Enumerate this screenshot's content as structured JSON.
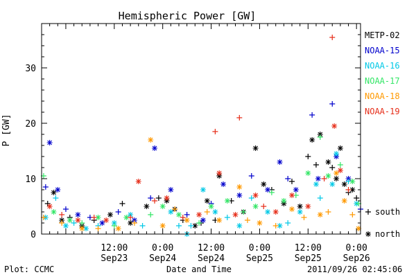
{
  "chart_data": {
    "type": "scatter",
    "title": "Hemispheric Power [GW]",
    "ylabel": "P [GW]",
    "xlabel": "Date and Time",
    "ylim": [
      0,
      38
    ],
    "xlim": [
      "2011-09-22T18:00",
      "2011-09-26T01:00"
    ],
    "yticks": [
      0,
      10,
      20,
      30
    ],
    "xticks": [
      {
        "at": "2011-09-23T12:00",
        "time": "12:00",
        "date": "Sep23"
      },
      {
        "at": "2011-09-24T00:00",
        "time": "0:00",
        "date": "Sep24"
      },
      {
        "at": "2011-09-24T12:00",
        "time": "12:00",
        "date": "Sep24"
      },
      {
        "at": "2011-09-25T00:00",
        "time": "0:00",
        "date": "Sep25"
      },
      {
        "at": "2011-09-25T12:00",
        "time": "12:00",
        "date": "Sep25"
      },
      {
        "at": "2011-09-26T00:00",
        "time": "0:00",
        "date": "Sep26"
      }
    ],
    "grid": false,
    "legend_position": "right",
    "marker_legend": [
      {
        "symbol": "+",
        "label": "south"
      },
      {
        "symbol": "*",
        "label": "north"
      }
    ],
    "series": [
      {
        "name": "METP-02",
        "color": "#000000",
        "points": [
          [
            "2011-09-22T19:30",
            5.5,
            "+"
          ],
          [
            "2011-09-22T21:00",
            7.5,
            "*"
          ],
          [
            "2011-09-22T23:00",
            2.5,
            "*"
          ],
          [
            "2011-09-23T01:00",
            3.0,
            "+"
          ],
          [
            "2011-09-23T04:00",
            1.5,
            "*"
          ],
          [
            "2011-09-23T07:00",
            2.5,
            "+"
          ],
          [
            "2011-09-23T11:00",
            3.5,
            "*"
          ],
          [
            "2011-09-23T14:00",
            5.5,
            "+"
          ],
          [
            "2011-09-23T16:00",
            2.0,
            "*"
          ],
          [
            "2011-09-23T20:00",
            5.0,
            "*"
          ],
          [
            "2011-09-23T23:00",
            6.5,
            "+"
          ],
          [
            "2011-09-24T01:00",
            6.0,
            "*"
          ],
          [
            "2011-09-24T03:00",
            4.5,
            "*"
          ],
          [
            "2011-09-24T05:00",
            2.5,
            "+"
          ],
          [
            "2011-09-24T08:00",
            1.5,
            "*"
          ],
          [
            "2011-09-24T09:30",
            2.0,
            "+"
          ],
          [
            "2011-09-24T11:00",
            6.0,
            "*"
          ],
          [
            "2011-09-24T13:00",
            2.5,
            "+"
          ],
          [
            "2011-09-24T14:00",
            10.5,
            "*"
          ],
          [
            "2011-09-24T17:00",
            6.0,
            "+"
          ],
          [
            "2011-09-24T20:00",
            4.0,
            "*"
          ],
          [
            "2011-09-24T23:00",
            15.5,
            "*"
          ],
          [
            "2011-09-25T01:00",
            9.0,
            "*"
          ],
          [
            "2011-09-25T03:00",
            8.0,
            "+"
          ],
          [
            "2011-09-25T06:00",
            5.5,
            "*"
          ],
          [
            "2011-09-25T08:00",
            9.5,
            "+"
          ],
          [
            "2011-09-25T10:00",
            5.0,
            "*"
          ],
          [
            "2011-09-25T12:00",
            14.0,
            "+"
          ],
          [
            "2011-09-25T13:00",
            17.0,
            "*"
          ],
          [
            "2011-09-25T14:00",
            12.5,
            "+"
          ],
          [
            "2011-09-25T15:00",
            18.0,
            "*"
          ],
          [
            "2011-09-25T17:00",
            13.0,
            "*"
          ],
          [
            "2011-09-25T18:00",
            12.0,
            "+"
          ],
          [
            "2011-09-25T19:00",
            10.0,
            "*"
          ],
          [
            "2011-09-25T20:00",
            15.5,
            "*"
          ],
          [
            "2011-09-25T21:00",
            9.0,
            "*"
          ],
          [
            "2011-09-25T22:00",
            7.5,
            "+"
          ],
          [
            "2011-09-25T23:00",
            8.0,
            "*"
          ],
          [
            "2011-09-26T00:00",
            6.5,
            "+"
          ]
        ]
      },
      {
        "name": "NOAA-15",
        "color": "#0000cc",
        "points": [
          [
            "2011-09-22T19:00",
            8.5,
            "+"
          ],
          [
            "2011-09-22T20:00",
            16.5,
            "*"
          ],
          [
            "2011-09-22T22:00",
            8.0,
            "*"
          ],
          [
            "2011-09-23T00:00",
            4.5,
            "+"
          ],
          [
            "2011-09-23T03:00",
            3.5,
            "*"
          ],
          [
            "2011-09-23T06:00",
            3.0,
            "+"
          ],
          [
            "2011-09-23T09:00",
            2.0,
            "*"
          ],
          [
            "2011-09-23T13:00",
            4.0,
            "+"
          ],
          [
            "2011-09-23T17:00",
            2.5,
            "*"
          ],
          [
            "2011-09-23T21:00",
            6.5,
            "+"
          ],
          [
            "2011-09-23T22:00",
            15.5,
            "*"
          ],
          [
            "2011-09-24T02:00",
            8.0,
            "*"
          ],
          [
            "2011-09-24T06:00",
            3.5,
            "+"
          ],
          [
            "2011-09-24T10:00",
            2.5,
            "*"
          ],
          [
            "2011-09-24T12:00",
            5.5,
            "+"
          ],
          [
            "2011-09-24T15:00",
            9.0,
            "*"
          ],
          [
            "2011-09-24T19:00",
            7.0,
            "*"
          ],
          [
            "2011-09-24T22:00",
            10.5,
            "+"
          ],
          [
            "2011-09-25T02:00",
            8.0,
            "*"
          ],
          [
            "2011-09-25T05:00",
            13.0,
            "*"
          ],
          [
            "2011-09-25T07:00",
            10.0,
            "+"
          ],
          [
            "2011-09-25T09:00",
            8.0,
            "*"
          ],
          [
            "2011-09-25T13:00",
            21.5,
            "+"
          ],
          [
            "2011-09-25T14:30",
            10.0,
            "*"
          ],
          [
            "2011-09-25T18:00",
            23.5,
            "+"
          ],
          [
            "2011-09-25T19:00",
            14.0,
            "*"
          ],
          [
            "2011-09-25T22:00",
            10.0,
            "*"
          ],
          [
            "2011-09-26T01:00",
            4.5,
            "+"
          ]
        ]
      },
      {
        "name": "NOAA-16",
        "color": "#00c8e6",
        "points": [
          [
            "2011-09-22T19:00",
            3.0,
            "*"
          ],
          [
            "2011-09-22T21:30",
            6.5,
            "+"
          ],
          [
            "2011-09-23T00:00",
            1.5,
            "*"
          ],
          [
            "2011-09-23T02:00",
            2.0,
            "+"
          ],
          [
            "2011-09-23T05:00",
            1.0,
            "*"
          ],
          [
            "2011-09-23T08:00",
            1.5,
            "+"
          ],
          [
            "2011-09-23T12:00",
            2.0,
            "*"
          ],
          [
            "2011-09-23T16:00",
            3.5,
            "*"
          ],
          [
            "2011-09-23T19:00",
            1.5,
            "+"
          ],
          [
            "2011-09-24T02:00",
            4.0,
            "*"
          ],
          [
            "2011-09-24T04:00",
            1.5,
            "+"
          ],
          [
            "2011-09-24T06:00",
            0.0,
            "*"
          ],
          [
            "2011-09-24T07:00",
            1.5,
            "+"
          ],
          [
            "2011-09-24T10:00",
            8.0,
            "*"
          ],
          [
            "2011-09-24T13:00",
            4.0,
            "*"
          ],
          [
            "2011-09-24T16:00",
            3.0,
            "+"
          ],
          [
            "2011-09-24T19:00",
            1.5,
            "*"
          ],
          [
            "2011-09-24T22:00",
            6.5,
            "+"
          ],
          [
            "2011-09-25T02:00",
            4.0,
            "*"
          ],
          [
            "2011-09-25T05:00",
            1.5,
            "*"
          ],
          [
            "2011-09-25T07:00",
            2.0,
            "+"
          ],
          [
            "2011-09-25T10:00",
            4.0,
            "*"
          ],
          [
            "2011-09-25T14:00",
            9.0,
            "*"
          ],
          [
            "2011-09-25T15:00",
            6.5,
            "+"
          ],
          [
            "2011-09-25T18:00",
            9.0,
            "*"
          ],
          [
            "2011-09-25T19:00",
            14.5,
            "*"
          ],
          [
            "2011-09-25T22:00",
            9.5,
            "+"
          ],
          [
            "2011-09-26T00:00",
            5.5,
            "*"
          ]
        ]
      },
      {
        "name": "NOAA-17",
        "color": "#33e666",
        "points": [
          [
            "2011-09-22T18:30",
            10.5,
            "+"
          ],
          [
            "2011-09-22T21:00",
            4.0,
            "*"
          ],
          [
            "2011-09-23T01:00",
            2.5,
            "*"
          ],
          [
            "2011-09-23T04:00",
            2.0,
            "+"
          ],
          [
            "2011-09-23T08:00",
            3.0,
            "*"
          ],
          [
            "2011-09-23T12:00",
            1.5,
            "+"
          ],
          [
            "2011-09-23T15:00",
            3.0,
            "*"
          ],
          [
            "2011-09-23T21:00",
            3.5,
            "+"
          ],
          [
            "2011-09-24T00:00",
            5.0,
            "*"
          ],
          [
            "2011-09-24T04:00",
            3.5,
            "*"
          ],
          [
            "2011-09-24T09:00",
            2.0,
            "+"
          ],
          [
            "2011-09-24T12:00",
            5.0,
            "*"
          ],
          [
            "2011-09-24T16:00",
            6.0,
            "*"
          ],
          [
            "2011-09-24T20:00",
            4.0,
            "+"
          ],
          [
            "2011-09-24T23:00",
            5.0,
            "*"
          ],
          [
            "2011-09-25T03:00",
            7.5,
            "+"
          ],
          [
            "2011-09-25T06:00",
            6.0,
            "*"
          ],
          [
            "2011-09-25T09:00",
            7.0,
            "+"
          ],
          [
            "2011-09-25T12:00",
            11.0,
            "*"
          ],
          [
            "2011-09-25T15:00",
            17.5,
            "+"
          ],
          [
            "2011-09-25T17:00",
            10.5,
            "*"
          ],
          [
            "2011-09-25T20:00",
            12.5,
            "+"
          ],
          [
            "2011-09-25T23:00",
            9.5,
            "*"
          ],
          [
            "2011-09-26T00:30",
            5.5,
            "+"
          ]
        ]
      },
      {
        "name": "NOAA-18",
        "color": "#ff9900",
        "points": [
          [
            "2011-09-22T18:30",
            3.0,
            "+"
          ],
          [
            "2011-09-22T23:00",
            2.0,
            "+"
          ],
          [
            "2011-09-23T04:00",
            1.0,
            "*"
          ],
          [
            "2011-09-23T08:00",
            1.0,
            "+"
          ],
          [
            "2011-09-23T13:00",
            1.0,
            "*"
          ],
          [
            "2011-09-23T17:00",
            2.0,
            "+"
          ],
          [
            "2011-09-23T21:00",
            17.0,
            "*"
          ],
          [
            "2011-09-24T00:00",
            1.5,
            "*"
          ],
          [
            "2011-09-24T03:00",
            4.5,
            "+"
          ],
          [
            "2011-09-24T06:00",
            2.5,
            "*"
          ],
          [
            "2011-09-24T11:00",
            4.0,
            "+"
          ],
          [
            "2011-09-24T14:00",
            2.5,
            "*"
          ],
          [
            "2011-09-24T19:00",
            8.5,
            "*"
          ],
          [
            "2011-09-24T21:00",
            2.5,
            "+"
          ],
          [
            "2011-09-25T00:00",
            2.0,
            "*"
          ],
          [
            "2011-09-25T04:00",
            1.5,
            "+"
          ],
          [
            "2011-09-25T08:00",
            4.5,
            "*"
          ],
          [
            "2011-09-25T11:00",
            3.0,
            "+"
          ],
          [
            "2011-09-25T15:00",
            3.5,
            "*"
          ],
          [
            "2011-09-25T17:00",
            4.0,
            "+"
          ],
          [
            "2011-09-25T19:00",
            11.0,
            "*"
          ],
          [
            "2011-09-25T21:00",
            6.0,
            "*"
          ],
          [
            "2011-09-25T23:00",
            3.5,
            "+"
          ],
          [
            "2011-09-26T00:30",
            1.0,
            "*"
          ]
        ]
      },
      {
        "name": "NOAA-19",
        "color": "#e62e1a",
        "points": [
          [
            "2011-09-22T20:00",
            5.0,
            "*"
          ],
          [
            "2011-09-22T23:00",
            3.5,
            "+"
          ],
          [
            "2011-09-23T03:00",
            2.5,
            "*"
          ],
          [
            "2011-09-23T07:00",
            3.0,
            "+"
          ],
          [
            "2011-09-23T10:00",
            2.5,
            "*"
          ],
          [
            "2011-09-23T16:00",
            3.0,
            "+"
          ],
          [
            "2011-09-23T18:00",
            9.5,
            "*"
          ],
          [
            "2011-09-23T22:00",
            6.0,
            "+"
          ],
          [
            "2011-09-24T01:00",
            6.5,
            "*"
          ],
          [
            "2011-09-24T05:00",
            3.0,
            "+"
          ],
          [
            "2011-09-24T09:00",
            3.5,
            "*"
          ],
          [
            "2011-09-24T13:00",
            18.5,
            "+"
          ],
          [
            "2011-09-24T14:00",
            11.0,
            "*"
          ],
          [
            "2011-09-24T18:00",
            3.5,
            "*"
          ],
          [
            "2011-09-24T19:00",
            21.0,
            "+"
          ],
          [
            "2011-09-24T23:00",
            7.0,
            "*"
          ],
          [
            "2011-09-25T01:00",
            5.0,
            "+"
          ],
          [
            "2011-09-25T04:00",
            4.0,
            "*"
          ],
          [
            "2011-09-25T08:00",
            7.0,
            "*"
          ],
          [
            "2011-09-25T12:00",
            5.0,
            "*"
          ],
          [
            "2011-09-25T16:00",
            10.0,
            "+"
          ],
          [
            "2011-09-25T18:00",
            35.5,
            "+"
          ],
          [
            "2011-09-25T18:30",
            19.5,
            "*"
          ],
          [
            "2011-09-25T20:00",
            11.5,
            "*"
          ],
          [
            "2011-09-25T22:00",
            8.0,
            "+"
          ]
        ]
      }
    ]
  },
  "footer": {
    "left": "Plot: CCMC",
    "center": "Date and Time",
    "right": "2011/09/26 02:45:06"
  }
}
